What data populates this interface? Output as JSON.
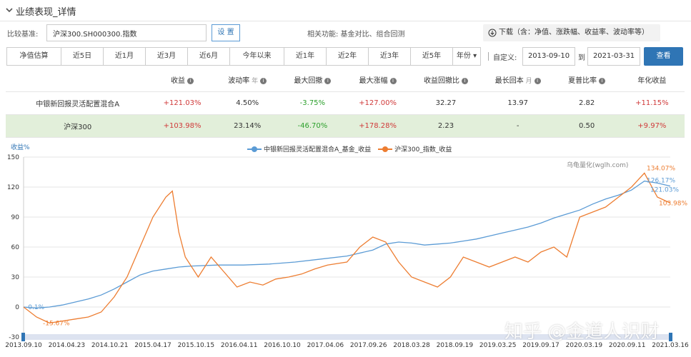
{
  "header": {
    "title": "业绩表现_详情"
  },
  "toolbar": {
    "bench_label": "比较基准:",
    "bench_value": "沪深300.SH000300.指数",
    "set_label": "设 置",
    "related": "相关功能:  基金对比、组合回测",
    "download": "下载（含：净值、涨跌幅、收益率、波动率等）"
  },
  "ranges": {
    "tabs": [
      {
        "label": "净值估算"
      },
      {
        "label": "近5日"
      },
      {
        "label": "近1月"
      },
      {
        "label": "近3月"
      },
      {
        "label": "近6月"
      },
      {
        "label": "今年以来"
      },
      {
        "label": "近1年"
      },
      {
        "label": "近2年"
      },
      {
        "label": "近3年"
      },
      {
        "label": "近5年"
      },
      {
        "label": "年份 ▾"
      }
    ],
    "custom_label": "自定义:",
    "start": "2013-09-10",
    "to_label": "到",
    "end": "2021-03-31",
    "query_label": "查看"
  },
  "table": {
    "headers": [
      {
        "label": "",
        "unit": "",
        "info": false
      },
      {
        "label": "收益",
        "unit": "",
        "info": true
      },
      {
        "label": "波动率",
        "unit": "年",
        "info": true
      },
      {
        "label": "最大回撤",
        "unit": "",
        "info": true
      },
      {
        "label": "最大涨幅",
        "unit": "",
        "info": true
      },
      {
        "label": "收益回撤比",
        "unit": "",
        "info": true
      },
      {
        "label": "最长回本",
        "unit": "月",
        "info": true
      },
      {
        "label": "夏普比率",
        "unit": "",
        "info": true
      },
      {
        "label": "年化收益",
        "unit": "",
        "info": false
      }
    ],
    "rows": [
      {
        "name": "中银新回报灵活配置混合A",
        "cells": [
          {
            "v": "+121.03%",
            "c": "pos"
          },
          {
            "v": "4.50%",
            "c": "neu"
          },
          {
            "v": "-3.75%",
            "c": "neg"
          },
          {
            "v": "+127.00%",
            "c": "pos"
          },
          {
            "v": "32.27",
            "c": "neu"
          },
          {
            "v": "13.97",
            "c": "neu"
          },
          {
            "v": "2.82",
            "c": "neu"
          },
          {
            "v": "+11.15%",
            "c": "pos"
          }
        ]
      },
      {
        "name": "沪深300",
        "cells": [
          {
            "v": "+103.98%",
            "c": "pos"
          },
          {
            "v": "23.14%",
            "c": "neu"
          },
          {
            "v": "-46.70%",
            "c": "neg"
          },
          {
            "v": "+178.28%",
            "c": "pos"
          },
          {
            "v": "2.23",
            "c": "neu"
          },
          {
            "v": "-",
            "c": "neu"
          },
          {
            "v": "0.50",
            "c": "neu"
          },
          {
            "v": "+9.97%",
            "c": "pos"
          }
        ]
      }
    ]
  },
  "chart": {
    "ylabel": "收益%",
    "watermark": "乌龟量化(wglh.com)",
    "overlay": "知乎 @金道人识财",
    "series_labels": [
      "中银新回报灵活配置混合A_基金_收益",
      "沪深300_指数_收益"
    ]
  },
  "chart_data": {
    "type": "line",
    "ylim": [
      -30,
      150
    ],
    "yticks": [
      -30,
      0,
      30,
      60,
      90,
      120,
      150
    ],
    "xticks": [
      "2013.09.10",
      "2014.04.23",
      "2014.10.21",
      "2015.04.17",
      "2015.10.15",
      "2016.04.11",
      "2016.10.10",
      "2017.04.06",
      "2017.09.26",
      "2018.03.28",
      "2018.09.19",
      "2019.03.25",
      "2019.09.17",
      "2020.03.19",
      "2020.09.11",
      "2021.03.16"
    ],
    "point_labels": {
      "fund_left": "-0.1%",
      "index_left": "-15.67%",
      "fund_right_top": "126.17%",
      "index_right_top": "134.07%",
      "fund_right_end": "121.03%",
      "index_right_end": "103.98%"
    },
    "grid": true,
    "legend": "top-center",
    "series": [
      {
        "name": "中银新回报灵活配置混合A_基金_收益",
        "color": "#5b9bd5",
        "points": [
          [
            0,
            0
          ],
          [
            0.02,
            -1
          ],
          [
            0.04,
            0
          ],
          [
            0.06,
            2
          ],
          [
            0.08,
            5
          ],
          [
            0.1,
            8
          ],
          [
            0.12,
            12
          ],
          [
            0.14,
            18
          ],
          [
            0.16,
            25
          ],
          [
            0.18,
            32
          ],
          [
            0.2,
            36
          ],
          [
            0.22,
            38
          ],
          [
            0.24,
            40
          ],
          [
            0.26,
            41
          ],
          [
            0.3,
            42
          ],
          [
            0.34,
            42
          ],
          [
            0.38,
            43
          ],
          [
            0.42,
            45
          ],
          [
            0.46,
            48
          ],
          [
            0.5,
            51
          ],
          [
            0.54,
            57
          ],
          [
            0.56,
            63
          ],
          [
            0.58,
            65
          ],
          [
            0.6,
            64
          ],
          [
            0.62,
            62
          ],
          [
            0.64,
            63
          ],
          [
            0.66,
            64
          ],
          [
            0.68,
            66
          ],
          [
            0.7,
            68
          ],
          [
            0.72,
            71
          ],
          [
            0.74,
            74
          ],
          [
            0.76,
            77
          ],
          [
            0.78,
            80
          ],
          [
            0.8,
            84
          ],
          [
            0.82,
            89
          ],
          [
            0.84,
            93
          ],
          [
            0.86,
            97
          ],
          [
            0.88,
            103
          ],
          [
            0.9,
            108
          ],
          [
            0.92,
            112
          ],
          [
            0.94,
            117
          ],
          [
            0.96,
            126
          ],
          [
            0.98,
            124
          ],
          [
            1,
            121
          ]
        ]
      },
      {
        "name": "沪深300_指数_收益",
        "color": "#ed7d31",
        "points": [
          [
            0,
            0
          ],
          [
            0.02,
            -10
          ],
          [
            0.04,
            -16
          ],
          [
            0.06,
            -14
          ],
          [
            0.08,
            -12
          ],
          [
            0.1,
            -10
          ],
          [
            0.12,
            -5
          ],
          [
            0.14,
            10
          ],
          [
            0.16,
            30
          ],
          [
            0.18,
            60
          ],
          [
            0.2,
            90
          ],
          [
            0.22,
            110
          ],
          [
            0.23,
            116
          ],
          [
            0.24,
            75
          ],
          [
            0.25,
            50
          ],
          [
            0.27,
            30
          ],
          [
            0.29,
            50
          ],
          [
            0.31,
            35
          ],
          [
            0.33,
            20
          ],
          [
            0.35,
            25
          ],
          [
            0.37,
            22
          ],
          [
            0.39,
            28
          ],
          [
            0.41,
            30
          ],
          [
            0.43,
            33
          ],
          [
            0.45,
            38
          ],
          [
            0.47,
            42
          ],
          [
            0.5,
            45
          ],
          [
            0.52,
            60
          ],
          [
            0.54,
            70
          ],
          [
            0.56,
            65
          ],
          [
            0.58,
            45
          ],
          [
            0.6,
            30
          ],
          [
            0.62,
            25
          ],
          [
            0.64,
            20
          ],
          [
            0.66,
            30
          ],
          [
            0.68,
            50
          ],
          [
            0.7,
            45
          ],
          [
            0.72,
            40
          ],
          [
            0.74,
            45
          ],
          [
            0.76,
            50
          ],
          [
            0.78,
            45
          ],
          [
            0.8,
            55
          ],
          [
            0.82,
            60
          ],
          [
            0.84,
            50
          ],
          [
            0.86,
            90
          ],
          [
            0.88,
            95
          ],
          [
            0.9,
            100
          ],
          [
            0.92,
            110
          ],
          [
            0.94,
            120
          ],
          [
            0.96,
            134
          ],
          [
            0.98,
            110
          ],
          [
            1,
            104
          ]
        ]
      }
    ]
  }
}
